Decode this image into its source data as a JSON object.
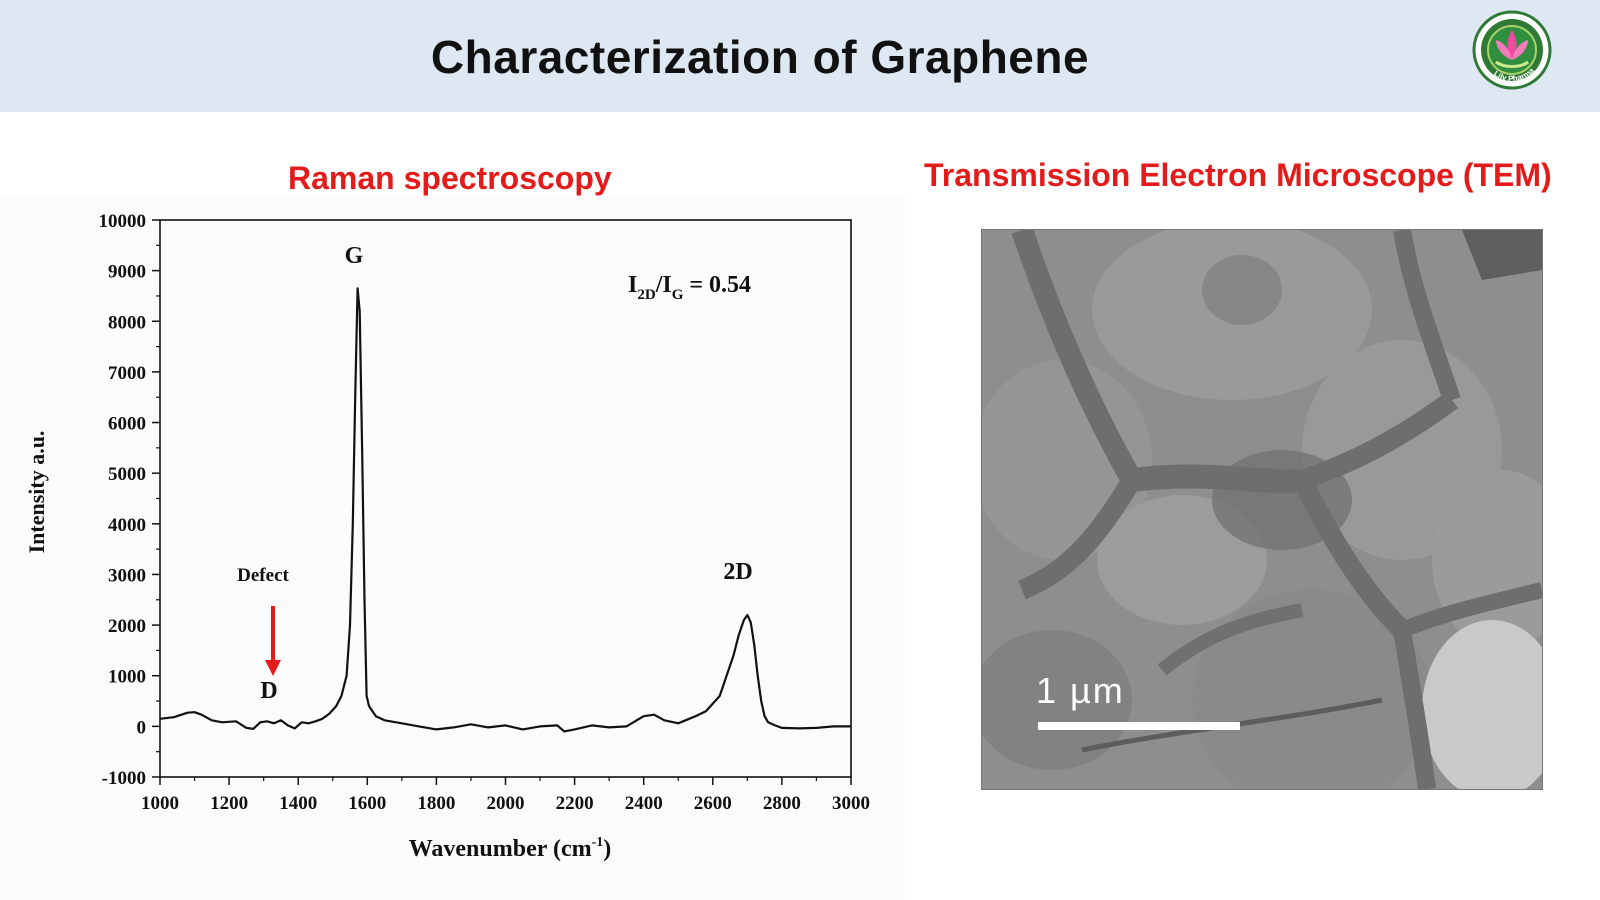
{
  "header": {
    "title": "Characterization of Graphene",
    "logo_text": "Lily Pharma",
    "logo_icon": "lotus-flower-icon"
  },
  "raman": {
    "title": "Raman spectroscopy"
  },
  "tem": {
    "title": "Transmission Electron Microscope (TEM)",
    "scale_label": "1 µm"
  },
  "chart_data": {
    "type": "line",
    "title": "",
    "xlabel": "Wavenumber (cm-1)",
    "xlabel_main": "Wavenumber (cm",
    "xlabel_sup": "-1",
    "xlabel_end": ")",
    "ylabel": "Intensity a.u.",
    "xlim": [
      1000,
      3000
    ],
    "ylim": [
      -1000,
      10000
    ],
    "x_ticks": [
      1000,
      1200,
      1400,
      1600,
      1800,
      2000,
      2200,
      2400,
      2600,
      2800,
      3000
    ],
    "y_ticks": [
      -1000,
      0,
      1000,
      2000,
      3000,
      4000,
      5000,
      6000,
      7000,
      8000,
      9000,
      10000
    ],
    "grid": false,
    "series": [
      {
        "x": [
          1000,
          1040,
          1080,
          1100,
          1120,
          1150,
          1180,
          1220,
          1250,
          1270,
          1290,
          1310,
          1330,
          1350,
          1370,
          1390,
          1410,
          1430,
          1450,
          1470,
          1490,
          1510,
          1525,
          1540,
          1550,
          1558,
          1565,
          1572,
          1578,
          1585,
          1592,
          1598,
          1605,
          1615,
          1625,
          1650,
          1700,
          1750,
          1800,
          1850,
          1900,
          1950,
          2000,
          2050,
          2100,
          2150,
          2170,
          2200,
          2250,
          2300,
          2350,
          2400,
          2430,
          2460,
          2500,
          2550,
          2580,
          2600,
          2620,
          2640,
          2660,
          2675,
          2690,
          2700,
          2710,
          2720,
          2730,
          2740,
          2750,
          2760,
          2780,
          2800,
          2850,
          2900,
          2950,
          3000
        ],
        "y": [
          150,
          180,
          270,
          280,
          230,
          120,
          80,
          100,
          -30,
          -50,
          80,
          100,
          60,
          120,
          20,
          -40,
          80,
          60,
          100,
          150,
          250,
          400,
          600,
          1000,
          2000,
          4000,
          6500,
          8650,
          8200,
          5500,
          2500,
          600,
          400,
          300,
          200,
          120,
          60,
          0,
          -60,
          -20,
          40,
          -20,
          20,
          -60,
          0,
          20,
          -100,
          -60,
          20,
          -20,
          0,
          200,
          230,
          120,
          60,
          200,
          300,
          450,
          600,
          1000,
          1400,
          1800,
          2100,
          2200,
          2050,
          1600,
          1000,
          500,
          200,
          80,
          20,
          -30,
          -40,
          -30,
          0,
          0
        ]
      }
    ],
    "annotations": {
      "g_peak": "G",
      "d_peak": "D",
      "two_d_peak": "2D",
      "defect": "Defect",
      "ratio_I": "I",
      "ratio_sub1": "2D",
      "ratio_slash": "/I",
      "ratio_sub2": "G",
      "ratio_value": " = 0.54"
    },
    "colors": {
      "line": "#111111",
      "arrow": "#e31b1b"
    }
  }
}
